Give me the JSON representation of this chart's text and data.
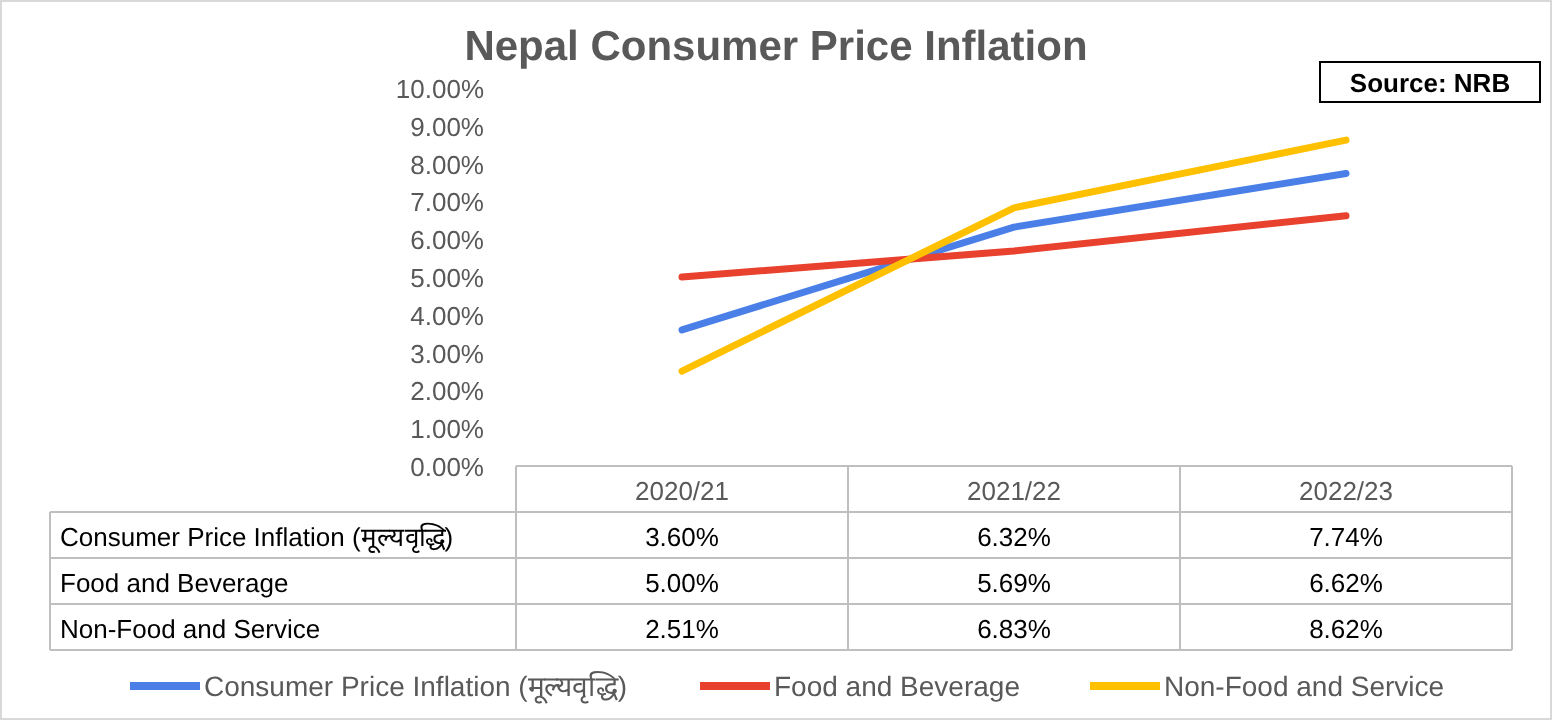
{
  "chart_data": {
    "type": "line",
    "title": "Nepal Consumer Price Inflation",
    "annotations": [
      "Source: NRB"
    ],
    "categories": [
      "2020/21",
      "2021/22",
      "2022/23"
    ],
    "series": [
      {
        "name": "Consumer Price Inflation (मूल्यवृद्धि)",
        "color": "#4a7fe8",
        "values": [
          3.6,
          6.32,
          7.74
        ],
        "value_labels": [
          "3.60%",
          "6.32%",
          "7.74%"
        ]
      },
      {
        "name": "Food and Beverage",
        "color": "#e8412d",
        "values": [
          5.0,
          5.69,
          6.62
        ],
        "value_labels": [
          "5.00%",
          "5.69%",
          "6.62%"
        ]
      },
      {
        "name": "Non-Food and Service",
        "color": "#ffc000",
        "values": [
          2.51,
          6.83,
          8.62
        ],
        "value_labels": [
          "2.51%",
          "6.83%",
          "8.62%"
        ]
      }
    ],
    "ylim": [
      0,
      10
    ],
    "yticks": [
      {
        "value": 0,
        "label": "0.00%"
      },
      {
        "value": 1,
        "label": "1.00%"
      },
      {
        "value": 2,
        "label": "2.00%"
      },
      {
        "value": 3,
        "label": "3.00%"
      },
      {
        "value": 4,
        "label": "4.00%"
      },
      {
        "value": 5,
        "label": "5.00%"
      },
      {
        "value": 6,
        "label": "6.00%"
      },
      {
        "value": 7,
        "label": "7.00%"
      },
      {
        "value": 8,
        "label": "8.00%"
      },
      {
        "value": 9,
        "label": "9.00%"
      },
      {
        "value": 10,
        "label": "10.00%"
      }
    ],
    "legend": "bottom",
    "line_style": "solid",
    "marker": "none"
  }
}
